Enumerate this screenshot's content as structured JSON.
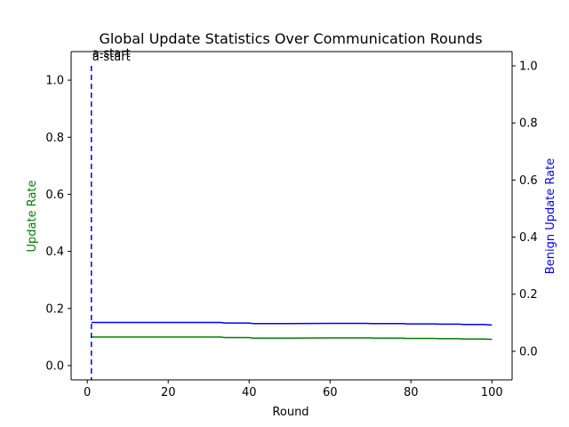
{
  "chart_data": {
    "type": "line",
    "title": "Global Update Statistics Over Communication Rounds",
    "xlabel": "Round",
    "ylabel_left": "Update Rate",
    "ylabel_right": "Benign Update Rate",
    "xlim": [
      -4,
      105
    ],
    "ylim_left": [
      -0.05,
      1.1
    ],
    "ylim_right": [
      -0.1,
      1.05
    ],
    "x_ticks": [
      0,
      20,
      40,
      60,
      80,
      100
    ],
    "y_ticks_left": [
      0.0,
      0.2,
      0.4,
      0.6,
      0.8,
      1.0
    ],
    "y_ticks_right": [
      0.0,
      0.2,
      0.4,
      0.6,
      0.8,
      1.0
    ],
    "grid": false,
    "axis_colors": {
      "left": "#008000",
      "right": "#0000ff"
    },
    "series": [
      {
        "axis": "left",
        "color": "#008000",
        "x": [
          1,
          10,
          20,
          30,
          33,
          34,
          40,
          41,
          50,
          60,
          70,
          71,
          78,
          79,
          86,
          87,
          92,
          93,
          98,
          100
        ],
        "y": [
          0.1,
          0.1,
          0.1,
          0.1,
          0.1,
          0.098,
          0.098,
          0.096,
          0.096,
          0.097,
          0.097,
          0.096,
          0.096,
          0.095,
          0.095,
          0.094,
          0.094,
          0.093,
          0.093,
          0.092
        ]
      },
      {
        "axis": "right",
        "color": "#0000ff",
        "x": [
          1,
          10,
          20,
          30,
          33,
          34,
          40,
          41,
          50,
          60,
          69,
          70,
          78,
          79,
          86,
          87,
          92,
          93,
          98,
          100
        ],
        "y": [
          0.101,
          0.101,
          0.101,
          0.101,
          0.101,
          0.099,
          0.099,
          0.097,
          0.097,
          0.098,
          0.098,
          0.097,
          0.097,
          0.096,
          0.096,
          0.095,
          0.095,
          0.094,
          0.094,
          0.092
        ]
      }
    ],
    "vlines": [
      {
        "x": 1,
        "axis": "left",
        "color": "#ff0000",
        "style": "dashed",
        "label": "a-start"
      },
      {
        "x": 1,
        "axis": "right",
        "color": "#0000ff",
        "style": "dashed",
        "label": "a-start"
      }
    ]
  }
}
